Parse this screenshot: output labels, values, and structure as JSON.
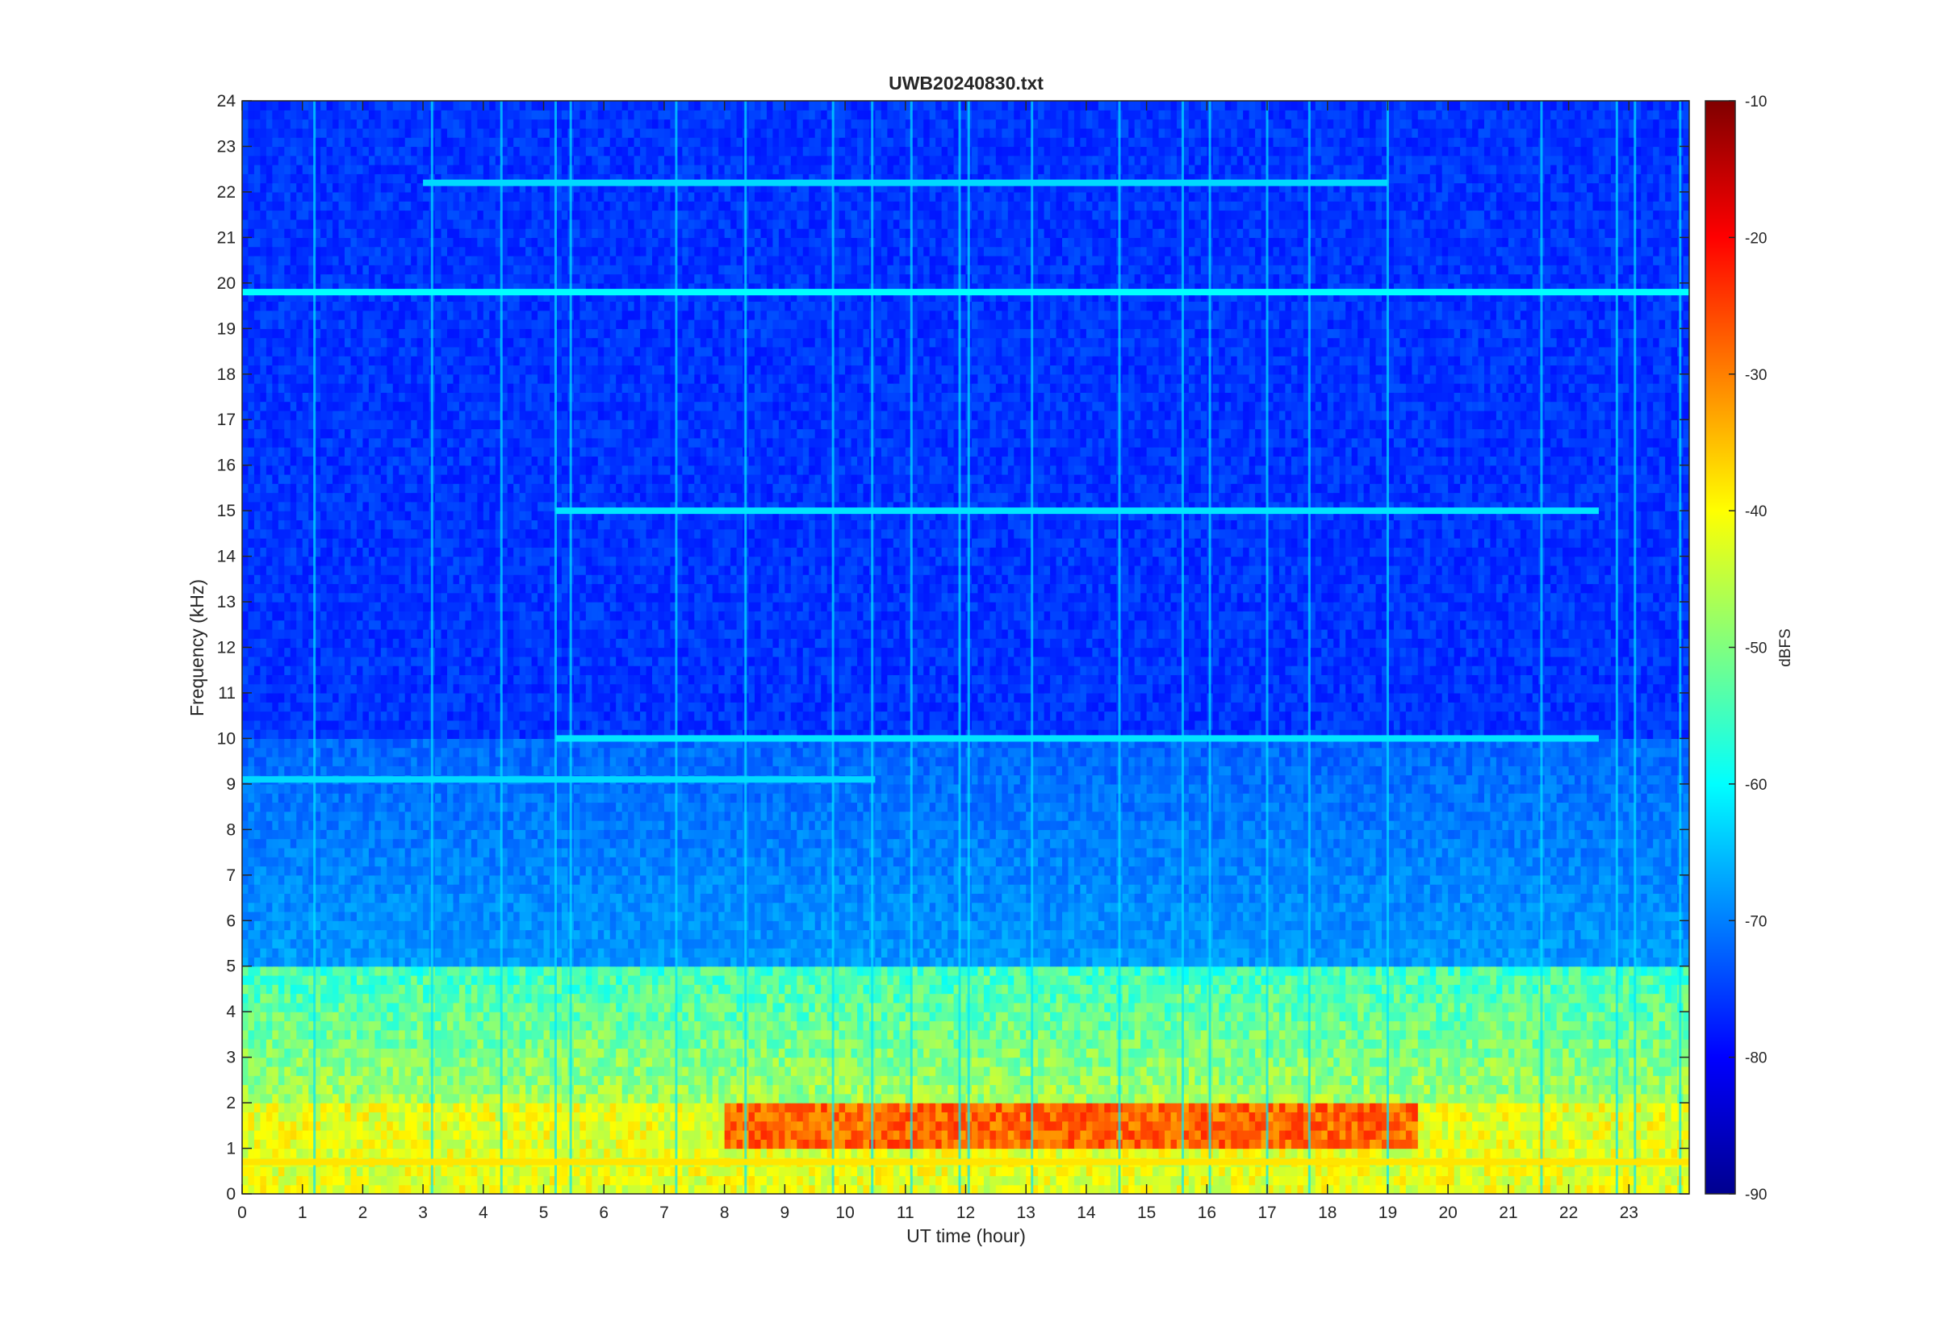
{
  "chart_data": {
    "type": "heatmap",
    "title": "UWB20240830.txt",
    "xlabel": "UT time (hour)",
    "ylabel": "Frequency (kHz)",
    "colorbar_label": "dBFS",
    "colormap": "jet",
    "xlim": [
      0,
      24
    ],
    "ylim": [
      0,
      24
    ],
    "clim": [
      -90,
      -10
    ],
    "x_ticks": [
      "0",
      "1",
      "2",
      "3",
      "4",
      "5",
      "6",
      "7",
      "8",
      "9",
      "10",
      "11",
      "12",
      "13",
      "14",
      "15",
      "16",
      "17",
      "18",
      "19",
      "20",
      "21",
      "22",
      "23"
    ],
    "y_ticks": [
      "0",
      "1",
      "2",
      "3",
      "4",
      "5",
      "6",
      "7",
      "8",
      "9",
      "10",
      "11",
      "12",
      "13",
      "14",
      "15",
      "16",
      "17",
      "18",
      "19",
      "20",
      "21",
      "22",
      "23",
      "24"
    ],
    "colorbar_ticks": [
      "-10",
      "-20",
      "-30",
      "-40",
      "-50",
      "-60",
      "-70",
      "-80",
      "-90"
    ],
    "approx_levels_dbfs": {
      "background_above_10kHz": -76,
      "background_5_to_10kHz": -68,
      "band_2_to_5kHz": -55,
      "band_0_to_2kHz": -42,
      "strongest_1_to_2kHz_8h_to_19h": -32
    },
    "notable_features": [
      {
        "freq_khz": 19.8,
        "hours": [
          0,
          24
        ],
        "level_dbfs": -60
      },
      {
        "freq_khz": 22.2,
        "hours": [
          3,
          19
        ],
        "level_dbfs": -63
      },
      {
        "freq_khz": 15.0,
        "hours": [
          5.2,
          22.5
        ],
        "level_dbfs": -62
      },
      {
        "freq_khz": 10.0,
        "hours": [
          5.2,
          22.5
        ],
        "level_dbfs": -62
      },
      {
        "freq_khz": 9.1,
        "hours": [
          0,
          10.5
        ],
        "level_dbfs": -63
      },
      {
        "freq_khz": 0.7,
        "hours": [
          0,
          24
        ],
        "level_dbfs": -38
      }
    ]
  }
}
